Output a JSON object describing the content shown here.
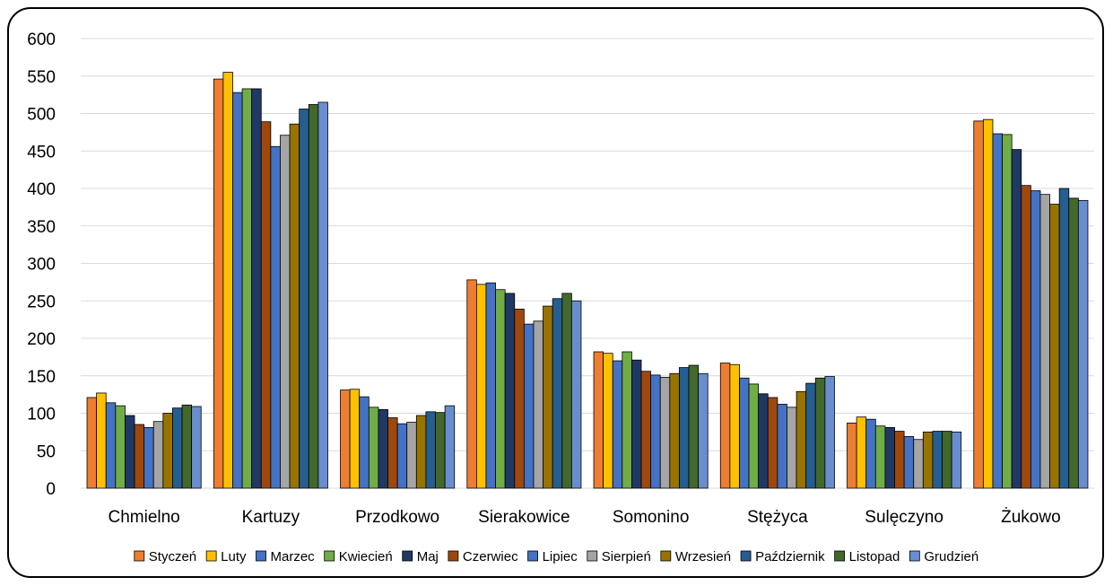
{
  "chart_data": {
    "type": "bar",
    "title": "",
    "xlabel": "",
    "ylabel": "",
    "ylim": [
      0,
      600
    ],
    "yticks": [
      0,
      50,
      100,
      150,
      200,
      250,
      300,
      350,
      400,
      450,
      500,
      550,
      600
    ],
    "grid": true,
    "legend_position": "bottom",
    "categories": [
      "Chmielno",
      "Kartuzy",
      "Przodkowo",
      "Sierakowice",
      "Somonino",
      "Stężyca",
      "Sulęczyno",
      "Żukowo"
    ],
    "series": [
      {
        "name": "Styczeń",
        "color": "#ed7d31",
        "values": [
          121,
          546,
          131,
          278,
          182,
          167,
          87,
          490
        ]
      },
      {
        "name": "Luty",
        "color": "#ffc000",
        "values": [
          127,
          555,
          132,
          272,
          180,
          165,
          95,
          492
        ]
      },
      {
        "name": "Marzec",
        "color": "#4472c4",
        "values": [
          114,
          528,
          122,
          274,
          170,
          147,
          92,
          473
        ]
      },
      {
        "name": "Kwiecień",
        "color": "#70ad47",
        "values": [
          110,
          533,
          108,
          265,
          182,
          139,
          83,
          472
        ]
      },
      {
        "name": "Maj",
        "color": "#203864",
        "values": [
          97,
          533,
          105,
          260,
          171,
          126,
          81,
          452
        ]
      },
      {
        "name": "Czerwiec",
        "color": "#9e480e",
        "values": [
          85,
          489,
          94,
          239,
          156,
          121,
          76,
          404
        ]
      },
      {
        "name": "Lipiec",
        "color": "#4472c4",
        "values": [
          81,
          456,
          86,
          219,
          151,
          112,
          69,
          397
        ]
      },
      {
        "name": "Sierpień",
        "color": "#a5a5a5",
        "values": [
          89,
          471,
          88,
          223,
          148,
          108,
          65,
          392
        ]
      },
      {
        "name": "Wrzesień",
        "color": "#997300",
        "values": [
          100,
          486,
          97,
          243,
          153,
          129,
          75,
          379
        ]
      },
      {
        "name": "Październik",
        "color": "#255e91",
        "values": [
          107,
          506,
          102,
          253,
          161,
          140,
          76,
          400
        ]
      },
      {
        "name": "Listopad",
        "color": "#43682b",
        "values": [
          111,
          512,
          101,
          260,
          164,
          147,
          76,
          387
        ]
      },
      {
        "name": "Grudzień",
        "color": "#698ed0",
        "values": [
          109,
          515,
          110,
          250,
          153,
          149,
          75,
          384
        ]
      }
    ]
  }
}
